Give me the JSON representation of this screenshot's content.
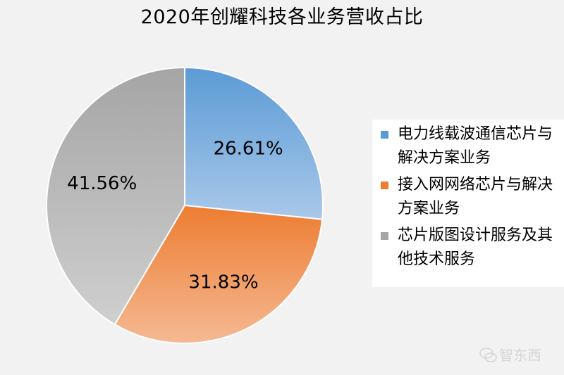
{
  "chart_data": {
    "type": "pie",
    "title": "2020年创耀科技各业务营收占比",
    "legend_position": "right",
    "slices": [
      {
        "label": "电力线载波通信芯片与解决方案业务",
        "value": 26.61,
        "display": "26.61%",
        "color": "#5b9bd5"
      },
      {
        "label": "接入网网络芯片与解决方案业务",
        "value": 31.83,
        "display": "31.83%",
        "color": "#ed7d31"
      },
      {
        "label": "芯片版图设计服务及其他技术服务",
        "value": 41.56,
        "display": "41.56%",
        "color": "#a5a5a5"
      }
    ]
  },
  "watermark": {
    "text": "智东西",
    "icon": "wechat-logo-icon"
  }
}
